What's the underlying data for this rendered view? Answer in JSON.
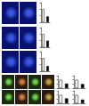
{
  "chart_data": [
    {
      "type": "bar",
      "categories": [
        null,
        null
      ],
      "values": [
        1.0,
        0.45
      ],
      "colors": [
        "#ffffff",
        "#000000"
      ],
      "ylim": [
        0,
        1.5
      ],
      "yticks": [
        0,
        0.5,
        1,
        1.5
      ],
      "tick_labels": false
    },
    {
      "type": "bar",
      "categories": [
        null,
        null
      ],
      "values": [
        1.0,
        0.5
      ],
      "colors": [
        "#ffffff",
        "#000000"
      ],
      "ylim": [
        0,
        1.5
      ],
      "yticks": [
        0,
        0.5,
        1,
        1.5
      ],
      "tick_labels": false
    },
    {
      "type": "bar",
      "categories": [
        null,
        null
      ],
      "values": [
        1.0,
        0.4
      ],
      "colors": [
        "#ffffff",
        "#000000"
      ],
      "ylim": [
        0,
        1.5
      ],
      "yticks": [
        0,
        0.5,
        1,
        1.5
      ],
      "tick_labels": false
    },
    {
      "type": "bar",
      "categories": [
        null,
        null
      ],
      "values": [
        1.0,
        0.55
      ],
      "colors": [
        "#ffffff",
        "#000000"
      ],
      "ylim": [
        0,
        1.5
      ],
      "yticks": [
        0,
        0.5,
        1,
        1.5
      ],
      "tick_labels": false
    },
    {
      "type": "bar",
      "categories": [
        null,
        null
      ],
      "values": [
        1.0,
        0.5
      ],
      "colors": [
        "#ffffff",
        "#000000"
      ],
      "ylim": [
        0,
        1.5
      ],
      "yticks": [
        0,
        0.5,
        1,
        1.5
      ],
      "tick_labels": false
    },
    {
      "type": "bar",
      "categories": [
        null,
        null
      ],
      "values": [
        1.0,
        0.6
      ],
      "colors": [
        "#ffffff",
        "#000000"
      ],
      "ylim": [
        0,
        1.5
      ],
      "yticks": [
        0,
        0.5,
        1,
        1.5
      ],
      "tick_labels": false
    },
    {
      "type": "bar",
      "categories": [
        null,
        null
      ],
      "values": [
        1.0,
        0.45
      ],
      "colors": [
        "#ffffff",
        "#000000"
      ],
      "ylim": [
        0,
        1.5
      ],
      "yticks": [
        0,
        0.5,
        1,
        1.5
      ],
      "tick_labels": false
    }
  ]
}
